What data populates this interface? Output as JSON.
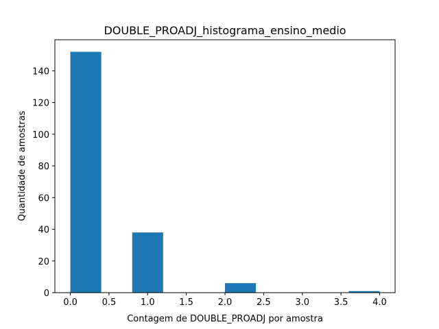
{
  "chart_data": {
    "type": "bar",
    "title": "DOUBLE_PROADJ_histograma_ensino_medio",
    "xlabel": "Contagem de DOUBLE_PROADJ por amostra",
    "ylabel": "Quantidade de amostras",
    "xlim": [
      -0.2,
      4.2
    ],
    "ylim": [
      0,
      159.6
    ],
    "xticks": [
      0.0,
      0.5,
      1.0,
      1.5,
      2.0,
      2.5,
      3.0,
      3.5,
      4.0
    ],
    "xtick_labels": [
      "0.0",
      "0.5",
      "1.0",
      "1.5",
      "2.0",
      "2.5",
      "3.0",
      "3.5",
      "4.0"
    ],
    "yticks": [
      0,
      20,
      40,
      60,
      80,
      100,
      120,
      140
    ],
    "ytick_labels": [
      "0",
      "20",
      "40",
      "60",
      "80",
      "100",
      "120",
      "140"
    ],
    "bins": [
      {
        "start": 0.0,
        "end": 0.4,
        "value": 152
      },
      {
        "start": 0.4,
        "end": 0.8,
        "value": 0
      },
      {
        "start": 0.8,
        "end": 1.2,
        "value": 38
      },
      {
        "start": 1.2,
        "end": 1.6,
        "value": 0
      },
      {
        "start": 1.6,
        "end": 2.0,
        "value": 0
      },
      {
        "start": 2.0,
        "end": 2.4,
        "value": 6
      },
      {
        "start": 2.4,
        "end": 2.8,
        "value": 0
      },
      {
        "start": 2.8,
        "end": 3.2,
        "value": 0
      },
      {
        "start": 3.2,
        "end": 3.6,
        "value": 0
      },
      {
        "start": 3.6,
        "end": 4.0,
        "value": 1
      }
    ],
    "bar_color": "#1f77b4",
    "grid": false,
    "legend": "none"
  }
}
